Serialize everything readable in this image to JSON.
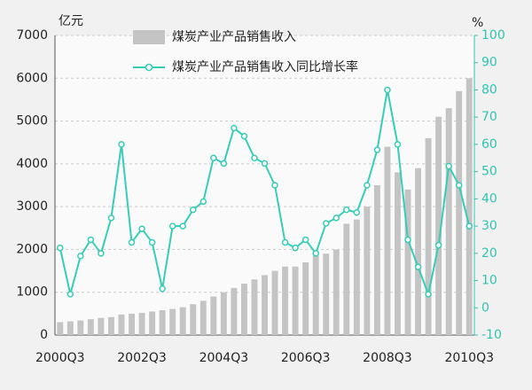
{
  "chart_data": {
    "type": "bar-line",
    "y_label": "亿元",
    "y2_label": "%",
    "categories": [
      "2000Q3",
      null,
      null,
      null,
      null,
      null,
      null,
      null,
      "2002Q3",
      null,
      null,
      null,
      null,
      null,
      null,
      null,
      "2004Q3",
      null,
      null,
      null,
      null,
      null,
      null,
      null,
      "2006Q3",
      null,
      null,
      null,
      null,
      null,
      null,
      null,
      "2008Q3",
      null,
      null,
      null,
      null,
      null,
      null,
      null,
      "2010Q3"
    ],
    "series": [
      {
        "name": "煤炭产业产品销售收入",
        "type": "bar",
        "color": "#c4c4c4",
        "values": [
          300,
          320,
          340,
          370,
          400,
          420,
          480,
          500,
          520,
          550,
          580,
          610,
          650,
          720,
          800,
          900,
          1000,
          1100,
          1200,
          1300,
          1400,
          1500,
          1600,
          1600,
          1700,
          1850,
          1900,
          2000,
          2600,
          2700,
          3000,
          3500,
          4400,
          3800,
          3400,
          3900,
          4600,
          5100,
          5300,
          5700,
          6000
        ]
      },
      {
        "name": "煤炭产业产品销售收入同比增长率",
        "type": "line",
        "axis": "y2",
        "color": "#36cdb8",
        "values": [
          22,
          5,
          19,
          25,
          20,
          33,
          60,
          24,
          29,
          24,
          7,
          30,
          30,
          36,
          39,
          55,
          53,
          66,
          63,
          55,
          53,
          45,
          24,
          22,
          25,
          20,
          31,
          33,
          36,
          35,
          45,
          58,
          80,
          60,
          25,
          15,
          5,
          23,
          52,
          45,
          30
        ]
      }
    ],
    "ylim": [
      0,
      7000
    ],
    "yticks": [
      0,
      1000,
      2000,
      3000,
      4000,
      5000,
      6000,
      7000
    ],
    "y2lim": [
      -10,
      100
    ],
    "y2ticks": [
      -10,
      0,
      10,
      20,
      30,
      40,
      50,
      60,
      70,
      80,
      90,
      100
    ],
    "grid": true
  }
}
